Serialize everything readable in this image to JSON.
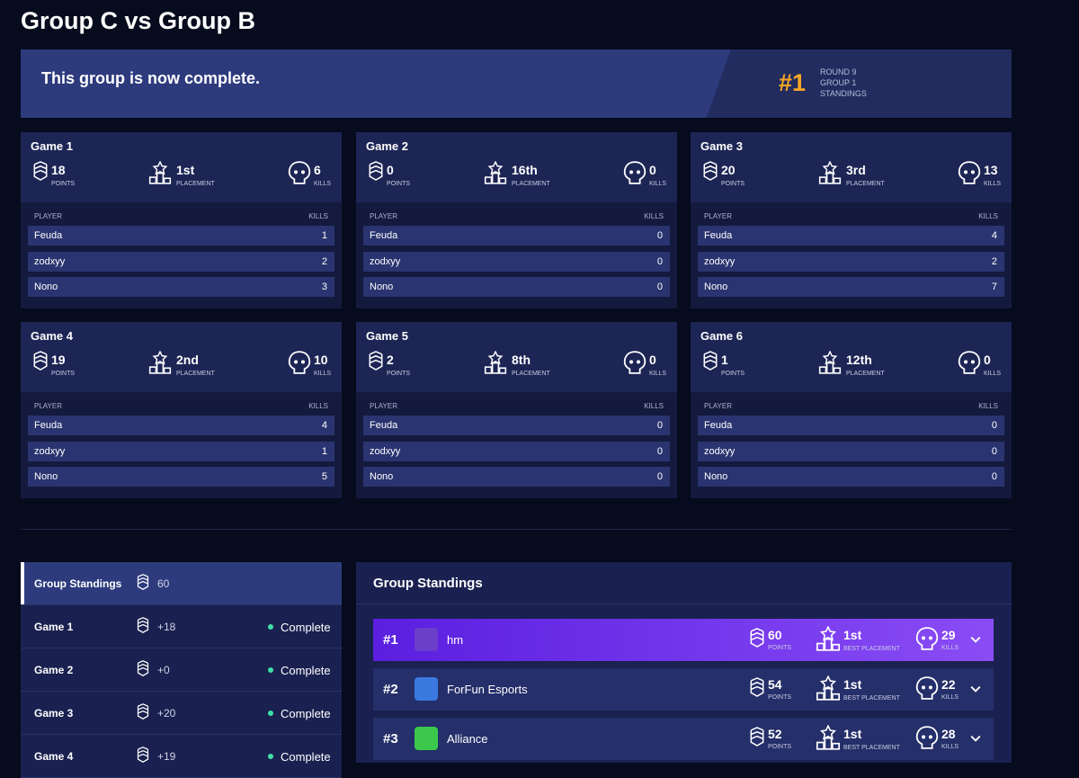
{
  "title": "Group C vs Group B",
  "banner": {
    "message": "This group is now complete.",
    "rank": "#1",
    "round": "ROUND 9",
    "group": "GROUP 1",
    "standings": "STANDINGS"
  },
  "labels": {
    "points": "POINTS",
    "placement": "PLACEMENT",
    "kills": "KILLS",
    "player": "PLAYER",
    "best_placement": "BEST PLACEMENT"
  },
  "games": [
    {
      "name": "Game 1",
      "points": 18,
      "placement": "1st",
      "kills": 6,
      "players": [
        {
          "name": "Feuda",
          "kills": 1
        },
        {
          "name": "zodxyy",
          "kills": 2
        },
        {
          "name": "Nono",
          "kills": 3
        }
      ]
    },
    {
      "name": "Game 2",
      "points": 0,
      "placement": "16th",
      "kills": 0,
      "players": [
        {
          "name": "Feuda",
          "kills": 0
        },
        {
          "name": "zodxyy",
          "kills": 0
        },
        {
          "name": "Nono",
          "kills": 0
        }
      ]
    },
    {
      "name": "Game 3",
      "points": 20,
      "placement": "3rd",
      "kills": 13,
      "players": [
        {
          "name": "Feuda",
          "kills": 4
        },
        {
          "name": "zodxyy",
          "kills": 2
        },
        {
          "name": "Nono",
          "kills": 7
        }
      ]
    },
    {
      "name": "Game 4",
      "points": 19,
      "placement": "2nd",
      "kills": 10,
      "players": [
        {
          "name": "Feuda",
          "kills": 4
        },
        {
          "name": "zodxyy",
          "kills": 1
        },
        {
          "name": "Nono",
          "kills": 5
        }
      ]
    },
    {
      "name": "Game 5",
      "points": 2,
      "placement": "8th",
      "kills": 0,
      "players": [
        {
          "name": "Feuda",
          "kills": 0
        },
        {
          "name": "zodxyy",
          "kills": 0
        },
        {
          "name": "Nono",
          "kills": 0
        }
      ]
    },
    {
      "name": "Game 6",
      "points": 1,
      "placement": "12th",
      "kills": 0,
      "players": [
        {
          "name": "Feuda",
          "kills": 0
        },
        {
          "name": "zodxyy",
          "kills": 0
        },
        {
          "name": "Nono",
          "kills": 0
        }
      ]
    }
  ],
  "sidebar": [
    {
      "name": "Group Standings",
      "points": 60
    },
    {
      "name": "Game 1",
      "points": "+18",
      "status": "Complete"
    },
    {
      "name": "Game 2",
      "points": "+0",
      "status": "Complete"
    },
    {
      "name": "Game 3",
      "points": "+20",
      "status": "Complete"
    },
    {
      "name": "Game 4",
      "points": "+19",
      "status": "Complete"
    }
  ],
  "standings": {
    "title": "Group Standings",
    "rows": [
      {
        "rank": "#1",
        "team": "hm",
        "points": 60,
        "placement": "1st",
        "kills": 29
      },
      {
        "rank": "#2",
        "team": "ForFun Esports",
        "points": 54,
        "placement": "1st",
        "kills": 22
      },
      {
        "rank": "#3",
        "team": "Alliance",
        "points": 52,
        "placement": "1st",
        "kills": 28
      }
    ]
  }
}
